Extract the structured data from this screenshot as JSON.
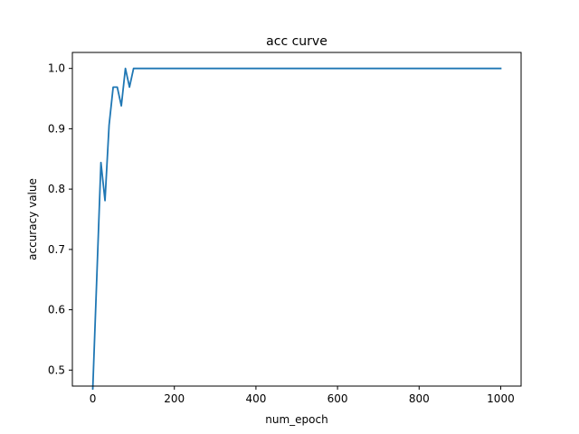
{
  "chart_data": {
    "type": "line",
    "title": "acc curve",
    "xlabel": "num_epoch",
    "ylabel": "accuracy value",
    "xlim": [
      -50,
      1050
    ],
    "ylim": [
      0.4735,
      1.0265
    ],
    "x_ticks": [
      0,
      200,
      400,
      600,
      800,
      1000
    ],
    "y_ticks": [
      0.5,
      0.6,
      0.7,
      0.8,
      0.9,
      1.0
    ],
    "grid": false,
    "series": [
      {
        "color": "#1f77b4",
        "x": [
          0,
          10,
          20,
          30,
          40,
          50,
          60,
          70,
          80,
          90,
          100,
          110,
          120,
          200,
          300,
          400,
          500,
          600,
          700,
          800,
          900,
          1000
        ],
        "y": [
          0.469,
          0.656,
          0.844,
          0.781,
          0.906,
          0.969,
          0.969,
          0.938,
          1.0,
          0.969,
          1.0,
          1.0,
          1.0,
          1.0,
          1.0,
          1.0,
          1.0,
          1.0,
          1.0,
          1.0,
          1.0,
          1.0
        ]
      }
    ]
  }
}
